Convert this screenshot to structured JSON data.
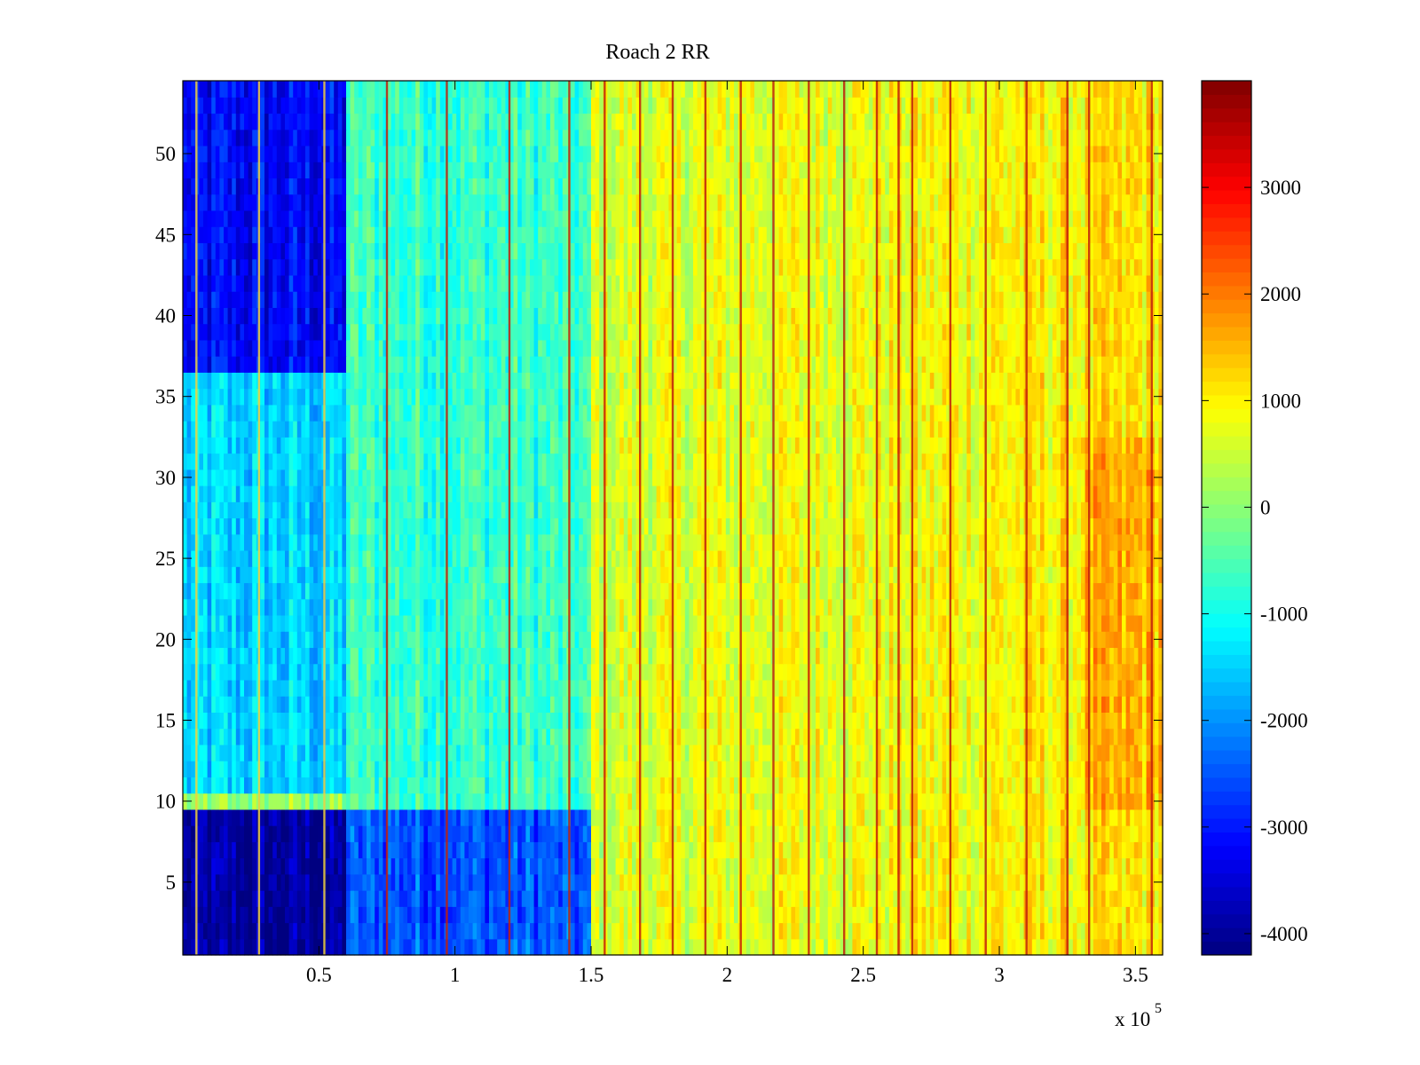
{
  "chart_data": {
    "type": "heatmap",
    "title": "Roach 2 RR",
    "xlabel": "",
    "ylabel": "",
    "x_exponent_base": "x 10",
    "x_exponent_power": "5",
    "xlim": [
      0.5,
      360000
    ],
    "ylim": [
      0.5,
      54.5
    ],
    "x_ticks": [
      50000,
      100000,
      150000,
      200000,
      250000,
      300000,
      350000
    ],
    "x_tick_labels": [
      "0.5",
      "1",
      "1.5",
      "2",
      "2.5",
      "3",
      "3.5"
    ],
    "y_ticks": [
      5,
      10,
      15,
      20,
      25,
      30,
      35,
      40,
      45,
      50
    ],
    "y_tick_labels": [
      "5",
      "10",
      "15",
      "20",
      "25",
      "30",
      "35",
      "40",
      "45",
      "50"
    ],
    "colorbar": {
      "colormap": "jet",
      "clim": [
        -4200,
        4000
      ],
      "ticks": [
        -4000,
        -3000,
        -2000,
        -1000,
        0,
        1000,
        2000,
        3000
      ],
      "tick_labels": [
        "-4000",
        "-3000",
        "-2000",
        "-1000",
        "0",
        "1000",
        "2000",
        "3000"
      ]
    },
    "n_rows": 54,
    "description_regions": [
      {
        "x_range": [
          0,
          60000
        ],
        "y_range": [
          0.5,
          9.5
        ],
        "approx_value": -4000
      },
      {
        "x_range": [
          0,
          60000
        ],
        "y_range": [
          37,
          54.5
        ],
        "approx_value": -3200
      },
      {
        "x_range": [
          0,
          60000
        ],
        "y_range": [
          10.5,
          37
        ],
        "approx_value": -1500
      },
      {
        "x_range": [
          60000,
          150000
        ],
        "y_range": [
          0.5,
          9.5
        ],
        "approx_value": -2500
      },
      {
        "x_range": [
          60000,
          150000
        ],
        "y_range": [
          9.5,
          54.5
        ],
        "approx_value": -700
      },
      {
        "x_range": [
          150000,
          360000
        ],
        "y_range": [
          0.5,
          54.5
        ],
        "approx_value": 600
      }
    ],
    "vertical_stripes_x": [
      5000,
      28000,
      52000,
      75000,
      97000,
      120000,
      142000,
      155000,
      168000,
      180000,
      192000,
      205000,
      217000,
      230000,
      243000,
      255000,
      263000,
      268000,
      282000,
      295000,
      310000,
      325000,
      333000,
      356000
    ]
  }
}
